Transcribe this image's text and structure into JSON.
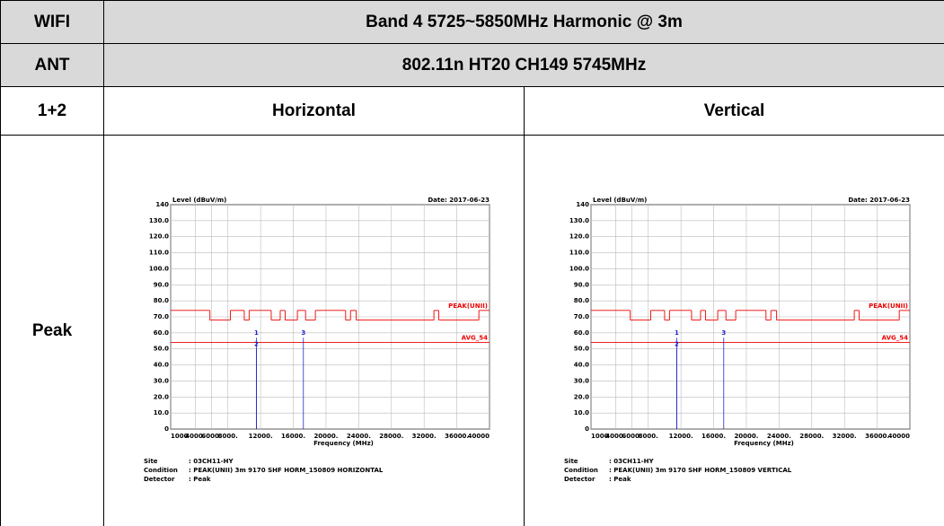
{
  "table": {
    "rows": [
      [
        "WIFI",
        "Band 4 5725~5850MHz Harmonic @ 3m"
      ],
      [
        "ANT",
        "802.11n HT20 CH149 5745MHz"
      ],
      [
        "1+2",
        "Horizontal",
        "Vertical"
      ],
      [
        "Peak"
      ]
    ]
  },
  "plot": {
    "ylabel": "Level (dBuV/m)",
    "xlabel": "Frequency (MHz)",
    "xlim": [
      1000,
      40000
    ],
    "ylim": [
      0,
      140
    ],
    "yticks": [
      0,
      {
        "value": 10,
        "label": "10.0"
      },
      {
        "value": 20,
        "label": "20.0"
      },
      {
        "value": 30,
        "label": "30.0"
      },
      {
        "value": 40,
        "label": "40.0"
      },
      {
        "value": 50,
        "label": "50.0"
      },
      {
        "value": 60,
        "label": "60.0"
      },
      {
        "value": 70,
        "label": "70.0"
      },
      {
        "value": 80,
        "label": "80.0"
      },
      {
        "value": 90,
        "label": "90.0"
      },
      {
        "value": 100,
        "label": "100.0"
      },
      {
        "value": 110,
        "label": "110.0"
      },
      {
        "value": 120,
        "label": "120.0"
      },
      {
        "value": 130,
        "label": "130.0"
      },
      140
    ],
    "xticks": [
      1000,
      {
        "value": 4000,
        "label": "4000."
      },
      {
        "value": 6000,
        "label": "6000."
      },
      {
        "value": 8000,
        "label": "8000."
      },
      {
        "value": 12000,
        "label": "12000."
      },
      {
        "value": 16000,
        "label": "16000."
      },
      {
        "value": 20000,
        "label": "20000."
      },
      {
        "value": 24000,
        "label": "24000."
      },
      {
        "value": 28000,
        "label": "28000."
      },
      {
        "value": 32000,
        "label": "32000."
      },
      {
        "value": 36000,
        "label": "36000."
      },
      40000
    ],
    "limits": [
      {
        "label": "PEAK(UNII)",
        "value": 74
      },
      {
        "label": "AVG_54",
        "value": 54
      }
    ],
    "peak_steps": [
      [
        1000,
        5800,
        74
      ],
      [
        5800,
        8300,
        68
      ],
      [
        8300,
        10000,
        74
      ],
      [
        10000,
        10600,
        68
      ],
      [
        10600,
        13300,
        74
      ],
      [
        13300,
        14400,
        68
      ],
      [
        14400,
        15000,
        74
      ],
      [
        15000,
        16500,
        68
      ],
      [
        16500,
        17500,
        74
      ],
      [
        17500,
        18700,
        68
      ],
      [
        18700,
        22400,
        74
      ],
      [
        22400,
        23000,
        68
      ],
      [
        23000,
        23700,
        74
      ],
      [
        23700,
        33200,
        68
      ],
      [
        33200,
        33800,
        74
      ],
      [
        33800,
        38700,
        68
      ],
      [
        38700,
        40000,
        74
      ]
    ]
  },
  "charts": [
    {
      "date": "Date: 2017-06-23",
      "info": [
        [
          "Site",
          ": 03CH11-HY"
        ],
        [
          "Condition",
          ": PEAK(UNII) 3m 9170 SHF HORM_150809 HORIZONTAL"
        ],
        [
          "Detector",
          ": Peak"
        ]
      ],
      "markers": [
        {
          "label": "1",
          "x": 11490,
          "y": 57
        },
        {
          "label": "2",
          "x": 11490,
          "y": 50
        },
        {
          "label": "3",
          "x": 17235,
          "y": 57
        }
      ]
    },
    {
      "date": "Date: 2017-06-23",
      "info": [
        [
          "Site",
          ": 03CH11-HY"
        ],
        [
          "Condition",
          ": PEAK(UNII) 3m 9170 SHF HORM_150809 VERTICAL"
        ],
        [
          "Detector",
          ": Peak"
        ]
      ],
      "markers": [
        {
          "label": "1",
          "x": 11490,
          "y": 57
        },
        {
          "label": "2",
          "x": 11490,
          "y": 50
        },
        {
          "label": "3",
          "x": 17235,
          "y": 57
        }
      ]
    }
  ]
}
